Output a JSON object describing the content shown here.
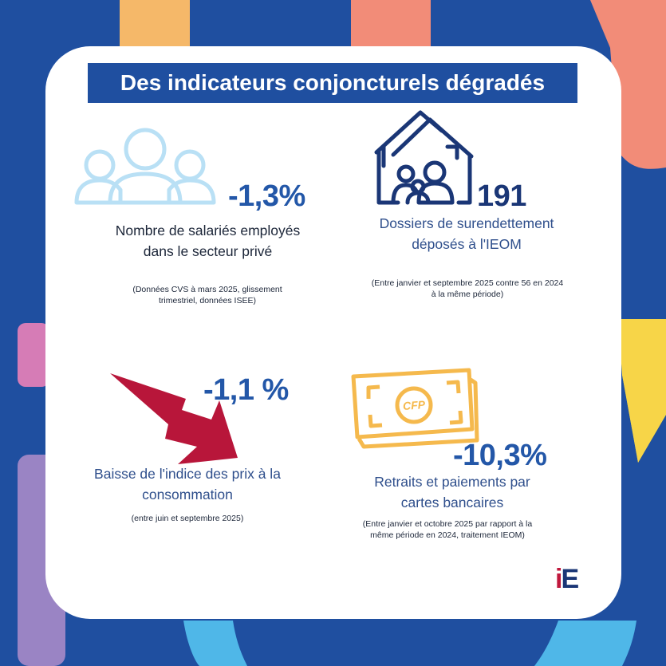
{
  "title": "Des indicateurs conjoncturels dégradés",
  "blocks": {
    "salaries": {
      "value": "-1,3%",
      "label": "Nombre de salariés employés dans le secteur privé",
      "note": "(Données CVS à mars 2025, glissement trimestriel, données ISEE)",
      "icon": "people-icon"
    },
    "surendettement": {
      "value": "191",
      "label": "Dossiers de surendettement déposés à l'IEOM",
      "note": "(Entre janvier et septembre 2025 contre 56 en 2024 à la même période)",
      "icon": "family-house-icon"
    },
    "prix": {
      "value": "-1,1 %",
      "label": "Baisse de l'indice des prix à la consommation",
      "note": "(entre juin et septembre 2025)",
      "icon": "down-arrow-icon"
    },
    "cartes": {
      "value": "-10,3%",
      "label": "Retraits et paiements par cartes bancaires",
      "note": "(Entre janvier et octobre 2025 par rapport à la même période en 2024, traitement IEOM)",
      "icon": "banknote-icon",
      "currency": "CFP"
    }
  },
  "logo": {
    "i": "i",
    "e": "E"
  },
  "colors": {
    "background": "#1f4fa0",
    "accent_blue": "#2357a8",
    "navy": "#1a3676",
    "arrow_red": "#b8163a",
    "banknote": "#f5b94d",
    "people": "#b9e0f5"
  }
}
